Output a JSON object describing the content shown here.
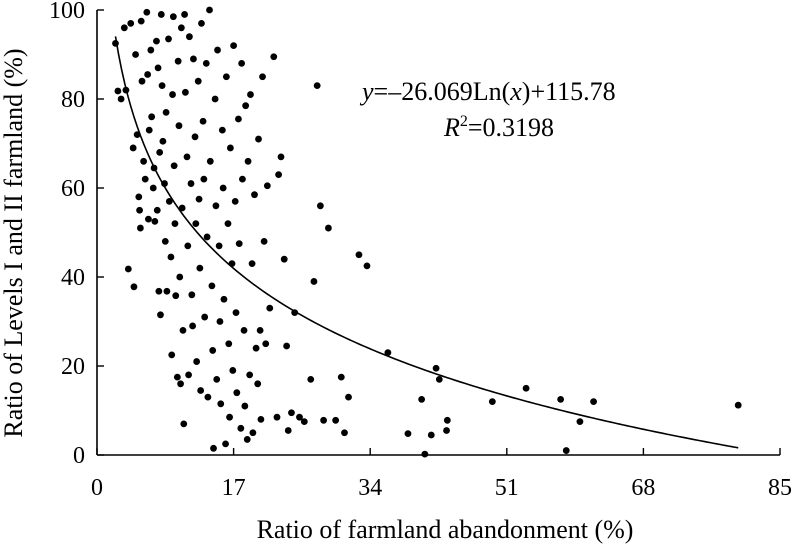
{
  "chart_data": {
    "type": "scatter",
    "xlabel": "Ratio of farmland abandonment (%)",
    "ylabel": "Ratio of Levels I and II farmland (%)",
    "xlim": [
      0,
      85
    ],
    "ylim": [
      0,
      100
    ],
    "xticks": [
      "0",
      "17",
      "34",
      "51",
      "68",
      "85"
    ],
    "yticks": [
      "0",
      "20",
      "40",
      "60",
      "80",
      "100"
    ],
    "grid": false,
    "equation": {
      "y_var": "y",
      "eq_part1": "=–26.069Ln(",
      "x_var": "x",
      "eq_part2": ")+115.78",
      "r_var": "R",
      "r_sup": "2",
      "r_value": "=0.3198"
    },
    "trendline": {
      "model": "logarithmic",
      "a": -26.069,
      "b": 115.78,
      "x_range": [
        2.3,
        79.8
      ]
    },
    "points": [
      [
        2.3,
        92.5
      ],
      [
        2.6,
        81.8
      ],
      [
        3.0,
        80.0
      ],
      [
        3.4,
        96.0
      ],
      [
        3.6,
        82.0
      ],
      [
        3.9,
        41.8
      ],
      [
        4.2,
        97.0
      ],
      [
        4.5,
        69.0
      ],
      [
        4.6,
        37.8
      ],
      [
        4.8,
        90.0
      ],
      [
        5.0,
        72.0
      ],
      [
        5.2,
        58.0
      ],
      [
        5.3,
        55.0
      ],
      [
        5.4,
        51.0
      ],
      [
        5.5,
        97.5
      ],
      [
        5.6,
        84.0
      ],
      [
        5.8,
        66.0
      ],
      [
        6.0,
        62.0
      ],
      [
        6.2,
        99.5
      ],
      [
        6.3,
        85.5
      ],
      [
        6.4,
        53.0
      ],
      [
        6.5,
        73.0
      ],
      [
        6.7,
        91.0
      ],
      [
        6.8,
        76.0
      ],
      [
        7.0,
        60.0
      ],
      [
        7.1,
        64.5
      ],
      [
        7.2,
        52.5
      ],
      [
        7.4,
        93.0
      ],
      [
        7.5,
        55.0
      ],
      [
        7.6,
        87.0
      ],
      [
        7.7,
        36.8
      ],
      [
        7.8,
        68.0
      ],
      [
        7.9,
        31.5
      ],
      [
        8.0,
        99.0
      ],
      [
        8.1,
        83.0
      ],
      [
        8.2,
        70.5
      ],
      [
        8.4,
        61.0
      ],
      [
        8.5,
        48.0
      ],
      [
        8.6,
        77.0
      ],
      [
        8.7,
        36.8
      ],
      [
        8.9,
        93.5
      ],
      [
        9.0,
        57.0
      ],
      [
        9.2,
        44.5
      ],
      [
        9.3,
        22.5
      ],
      [
        9.4,
        81.0
      ],
      [
        9.5,
        98.5
      ],
      [
        9.6,
        65.0
      ],
      [
        9.7,
        52.0
      ],
      [
        9.8,
        35.8
      ],
      [
        10.0,
        17.5
      ],
      [
        10.1,
        88.5
      ],
      [
        10.2,
        74.0
      ],
      [
        10.3,
        40.0
      ],
      [
        10.4,
        16.0
      ],
      [
        10.5,
        96.0
      ],
      [
        10.6,
        55.5
      ],
      [
        10.7,
        28.0
      ],
      [
        10.8,
        7.0
      ],
      [
        10.9,
        99.0
      ],
      [
        11.0,
        81.5
      ],
      [
        11.2,
        67.0
      ],
      [
        11.3,
        47.0
      ],
      [
        11.4,
        18.0
      ],
      [
        11.5,
        94.0
      ],
      [
        11.7,
        61.0
      ],
      [
        11.8,
        36.0
      ],
      [
        11.9,
        29.0
      ],
      [
        12.0,
        89.0
      ],
      [
        12.2,
        71.5
      ],
      [
        12.3,
        52.0
      ],
      [
        12.4,
        21.0
      ],
      [
        12.6,
        84.0
      ],
      [
        12.7,
        57.5
      ],
      [
        12.8,
        42.0
      ],
      [
        12.9,
        14.5
      ],
      [
        13.0,
        97.0
      ],
      [
        13.2,
        75.0
      ],
      [
        13.3,
        62.0
      ],
      [
        13.4,
        31.0
      ],
      [
        13.6,
        88.0
      ],
      [
        13.7,
        49.0
      ],
      [
        13.8,
        13.0
      ],
      [
        14.0,
        100.0
      ],
      [
        14.1,
        66.0
      ],
      [
        14.3,
        38.0
      ],
      [
        14.4,
        23.5
      ],
      [
        14.5,
        1.5
      ],
      [
        14.7,
        80.0
      ],
      [
        14.8,
        56.0
      ],
      [
        14.9,
        17.0
      ],
      [
        15.0,
        91.0
      ],
      [
        15.2,
        47.0
      ],
      [
        15.3,
        30.0
      ],
      [
        15.4,
        11.5
      ],
      [
        15.6,
        73.0
      ],
      [
        15.7,
        60.0
      ],
      [
        15.8,
        35.0
      ],
      [
        16.0,
        2.5
      ],
      [
        16.1,
        85.0
      ],
      [
        16.3,
        52.0
      ],
      [
        16.4,
        25.0
      ],
      [
        16.5,
        8.5
      ],
      [
        16.6,
        69.0
      ],
      [
        16.8,
        43.0
      ],
      [
        16.9,
        19.0
      ],
      [
        17.0,
        92.0
      ],
      [
        17.2,
        57.0
      ],
      [
        17.3,
        32.0
      ],
      [
        17.4,
        14.0
      ],
      [
        17.6,
        75.5
      ],
      [
        17.7,
        47.5
      ],
      [
        17.9,
        6.0
      ],
      [
        18.0,
        88.0
      ],
      [
        18.1,
        62.0
      ],
      [
        18.3,
        28.0
      ],
      [
        18.4,
        11.0
      ],
      [
        18.5,
        78.5
      ],
      [
        18.7,
        3.5
      ],
      [
        18.8,
        66.0
      ],
      [
        19.0,
        18.0
      ],
      [
        19.1,
        81.0
      ],
      [
        19.3,
        43.0
      ],
      [
        19.4,
        5.0
      ],
      [
        19.6,
        58.5
      ],
      [
        19.8,
        24.0
      ],
      [
        20.0,
        16.0
      ],
      [
        20.1,
        71.0
      ],
      [
        20.3,
        28.0
      ],
      [
        20.4,
        8.0
      ],
      [
        20.6,
        85.0
      ],
      [
        20.8,
        48.0
      ],
      [
        21.0,
        25.0
      ],
      [
        21.2,
        60.5
      ],
      [
        21.5,
        33.0
      ],
      [
        22.0,
        89.5
      ],
      [
        22.4,
        8.5
      ],
      [
        22.6,
        63.0
      ],
      [
        22.9,
        67.0
      ],
      [
        23.3,
        44.0
      ],
      [
        23.6,
        24.5
      ],
      [
        23.8,
        5.5
      ],
      [
        24.2,
        9.5
      ],
      [
        24.6,
        32.0
      ],
      [
        25.2,
        8.5
      ],
      [
        25.8,
        7.5
      ],
      [
        26.6,
        17.0
      ],
      [
        27.0,
        39.0
      ],
      [
        27.4,
        83.0
      ],
      [
        27.8,
        56.0
      ],
      [
        28.2,
        7.8
      ],
      [
        28.8,
        51.0
      ],
      [
        29.7,
        7.8
      ],
      [
        30.4,
        17.5
      ],
      [
        30.8,
        5.0
      ],
      [
        31.3,
        13.0
      ],
      [
        32.6,
        45.0
      ],
      [
        33.6,
        42.5
      ],
      [
        36.2,
        23.0
      ],
      [
        38.7,
        4.8
      ],
      [
        40.4,
        12.5
      ],
      [
        40.8,
        0.2
      ],
      [
        41.6,
        4.5
      ],
      [
        42.2,
        19.5
      ],
      [
        42.6,
        17.0
      ],
      [
        43.5,
        5.5
      ],
      [
        43.6,
        7.8
      ],
      [
        49.2,
        12.0
      ],
      [
        53.4,
        15.0
      ],
      [
        57.7,
        12.5
      ],
      [
        58.4,
        1.0
      ],
      [
        60.1,
        7.5
      ],
      [
        61.8,
        12.0
      ],
      [
        79.8,
        11.2
      ]
    ]
  }
}
